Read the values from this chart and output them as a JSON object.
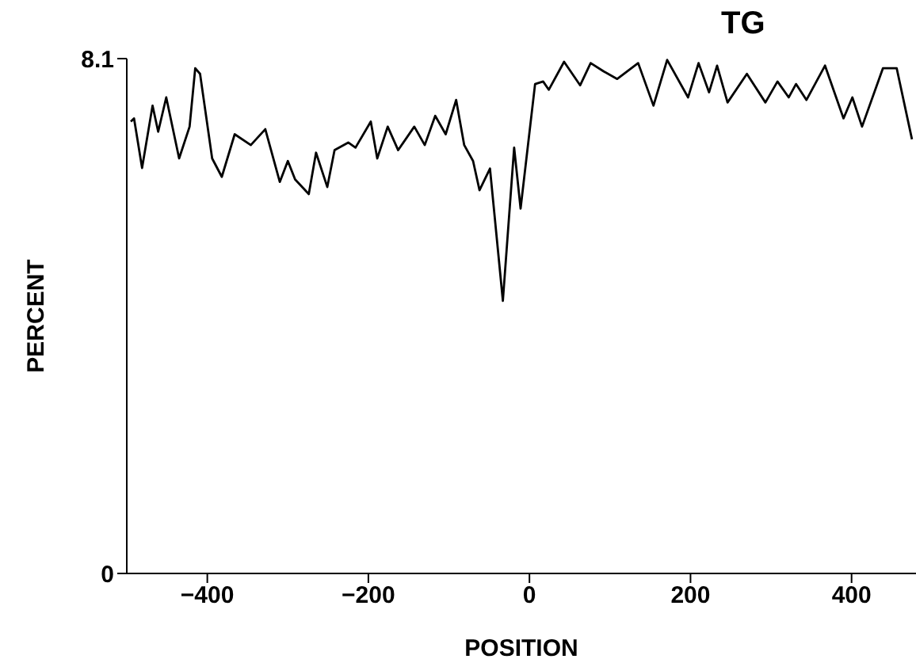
{
  "chart_data": {
    "type": "line",
    "title": "TG",
    "xlabel": "POSITION",
    "ylabel": "PERCENT",
    "xlim": [
      -500,
      480
    ],
    "xticks": [
      -400,
      -200,
      0,
      200,
      400
    ],
    "ylim": [
      0,
      8.1
    ],
    "yticks": [
      0,
      8.1
    ],
    "grid": false,
    "legend": false,
    "marker": "none",
    "line_style": "solid",
    "series": [
      {
        "color": "#000000",
        "x": [
          -495,
          -491,
          -481,
          -468,
          -461,
          -451,
          -435,
          -422,
          -415,
          -409,
          -394,
          -382,
          -366,
          -346,
          -328,
          -310,
          -300,
          -291,
          -274,
          -265,
          -251,
          -242,
          -225,
          -216,
          -197,
          -189,
          -176,
          -163,
          -143,
          -130,
          -117,
          -104,
          -91,
          -81,
          -70,
          -62,
          -49,
          -33,
          -19,
          -11,
          7,
          17,
          24,
          43,
          63,
          76,
          92,
          109,
          135,
          154,
          171,
          197,
          210,
          223,
          233,
          246,
          270,
          293,
          308,
          322,
          331,
          344,
          367,
          390,
          401,
          413,
          439,
          456,
          475
        ],
        "values": [
          7.11,
          7.16,
          6.38,
          7.36,
          6.95,
          7.49,
          6.53,
          7.03,
          7.95,
          7.86,
          6.53,
          6.24,
          6.91,
          6.74,
          6.99,
          6.16,
          6.49,
          6.2,
          5.97,
          6.62,
          6.08,
          6.66,
          6.78,
          6.7,
          7.11,
          6.53,
          7.03,
          6.66,
          7.03,
          6.74,
          7.2,
          6.91,
          7.45,
          6.74,
          6.49,
          6.03,
          6.37,
          4.29,
          6.7,
          5.74,
          7.7,
          7.74,
          7.61,
          8.05,
          7.68,
          8.03,
          7.9,
          7.78,
          8.03,
          7.36,
          8.08,
          7.49,
          8.03,
          7.57,
          7.99,
          7.41,
          7.86,
          7.41,
          7.74,
          7.49,
          7.7,
          7.45,
          7.99,
          7.16,
          7.49,
          7.03,
          7.95,
          7.95,
          6.83
        ]
      }
    ]
  }
}
